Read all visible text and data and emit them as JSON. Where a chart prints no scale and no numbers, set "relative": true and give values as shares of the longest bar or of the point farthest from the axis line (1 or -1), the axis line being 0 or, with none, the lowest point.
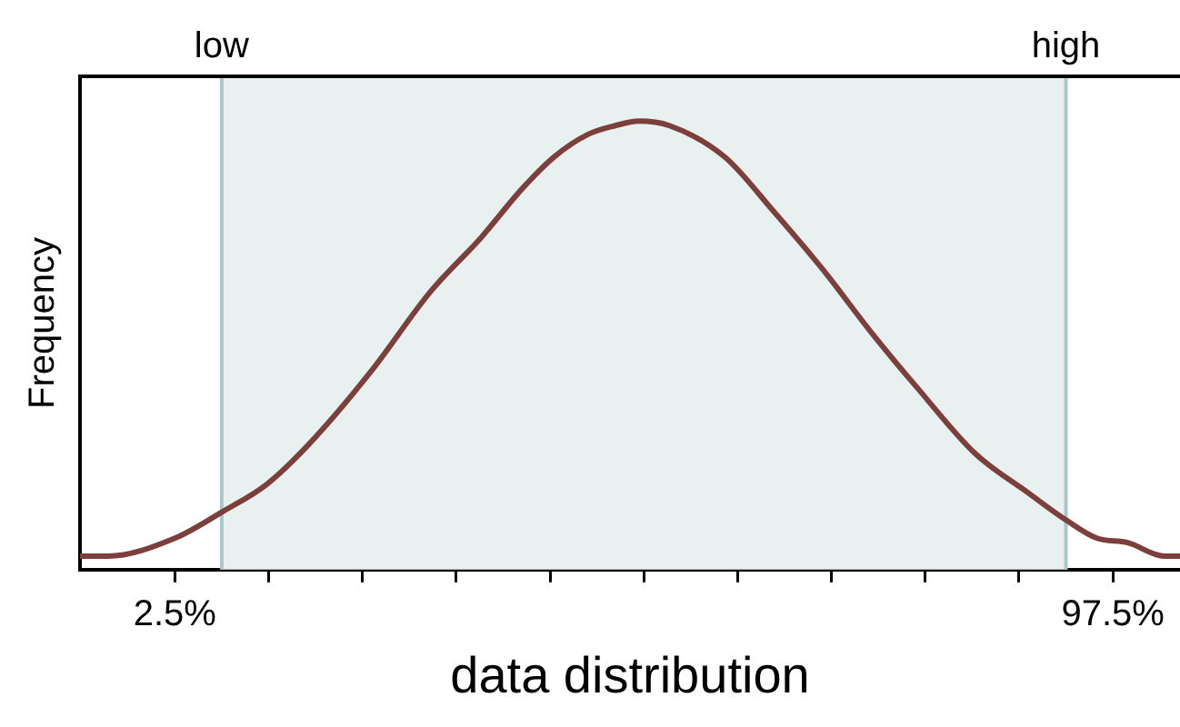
{
  "chart_data": {
    "type": "line",
    "relative": true,
    "xlabel": "data distribution",
    "ylabel": "Frequency",
    "xlim": [
      -7.1,
      104.3
    ],
    "xticks": [
      {
        "value": 2.5,
        "label": "2.5%"
      },
      {
        "value": 12,
        "label": null
      },
      {
        "value": 21.5,
        "label": null
      },
      {
        "value": 31,
        "label": null
      },
      {
        "value": 40.5,
        "label": null
      },
      {
        "value": 50,
        "label": null
      },
      {
        "value": 59.5,
        "label": null
      },
      {
        "value": 69,
        "label": null
      },
      {
        "value": 78.5,
        "label": null
      },
      {
        "value": 88,
        "label": null
      },
      {
        "value": 97.5,
        "label": "97.5%"
      }
    ],
    "series": [
      {
        "color": "#7d3f3c",
        "x": [
          -7.1,
          -4.3,
          2.5,
          7.4,
          11.8,
          16.1,
          22.3,
          28.4,
          33.5,
          37.7,
          40.9,
          44.3,
          47.1,
          49.5,
          52.6,
          58.2,
          63.1,
          68.1,
          73,
          77.9,
          83.5,
          89,
          92.8,
          95.9,
          99,
          102.7,
          104.3
        ],
        "values": [
          0.03,
          0.03,
          0.07,
          0.13,
          0.19,
          0.28,
          0.44,
          0.62,
          0.74,
          0.85,
          0.92,
          0.97,
          0.99,
          1,
          0.99,
          0.92,
          0.8,
          0.67,
          0.53,
          0.4,
          0.26,
          0.17,
          0.11,
          0.07,
          0.06,
          0.03,
          0.03
        ]
      }
    ],
    "bands": [
      {
        "axis": "x",
        "from": 7.25,
        "to": 92.75,
        "color": "#e8f1f0"
      }
    ],
    "ref_lines": [
      {
        "axis": "x",
        "value": 7.25,
        "label": "low",
        "color": "#a9c9c9"
      },
      {
        "axis": "x",
        "value": 92.75,
        "label": "high",
        "color": "#a9c9c9"
      }
    ],
    "grid": false,
    "legend": false,
    "marker": "none",
    "line_style": "solid"
  }
}
